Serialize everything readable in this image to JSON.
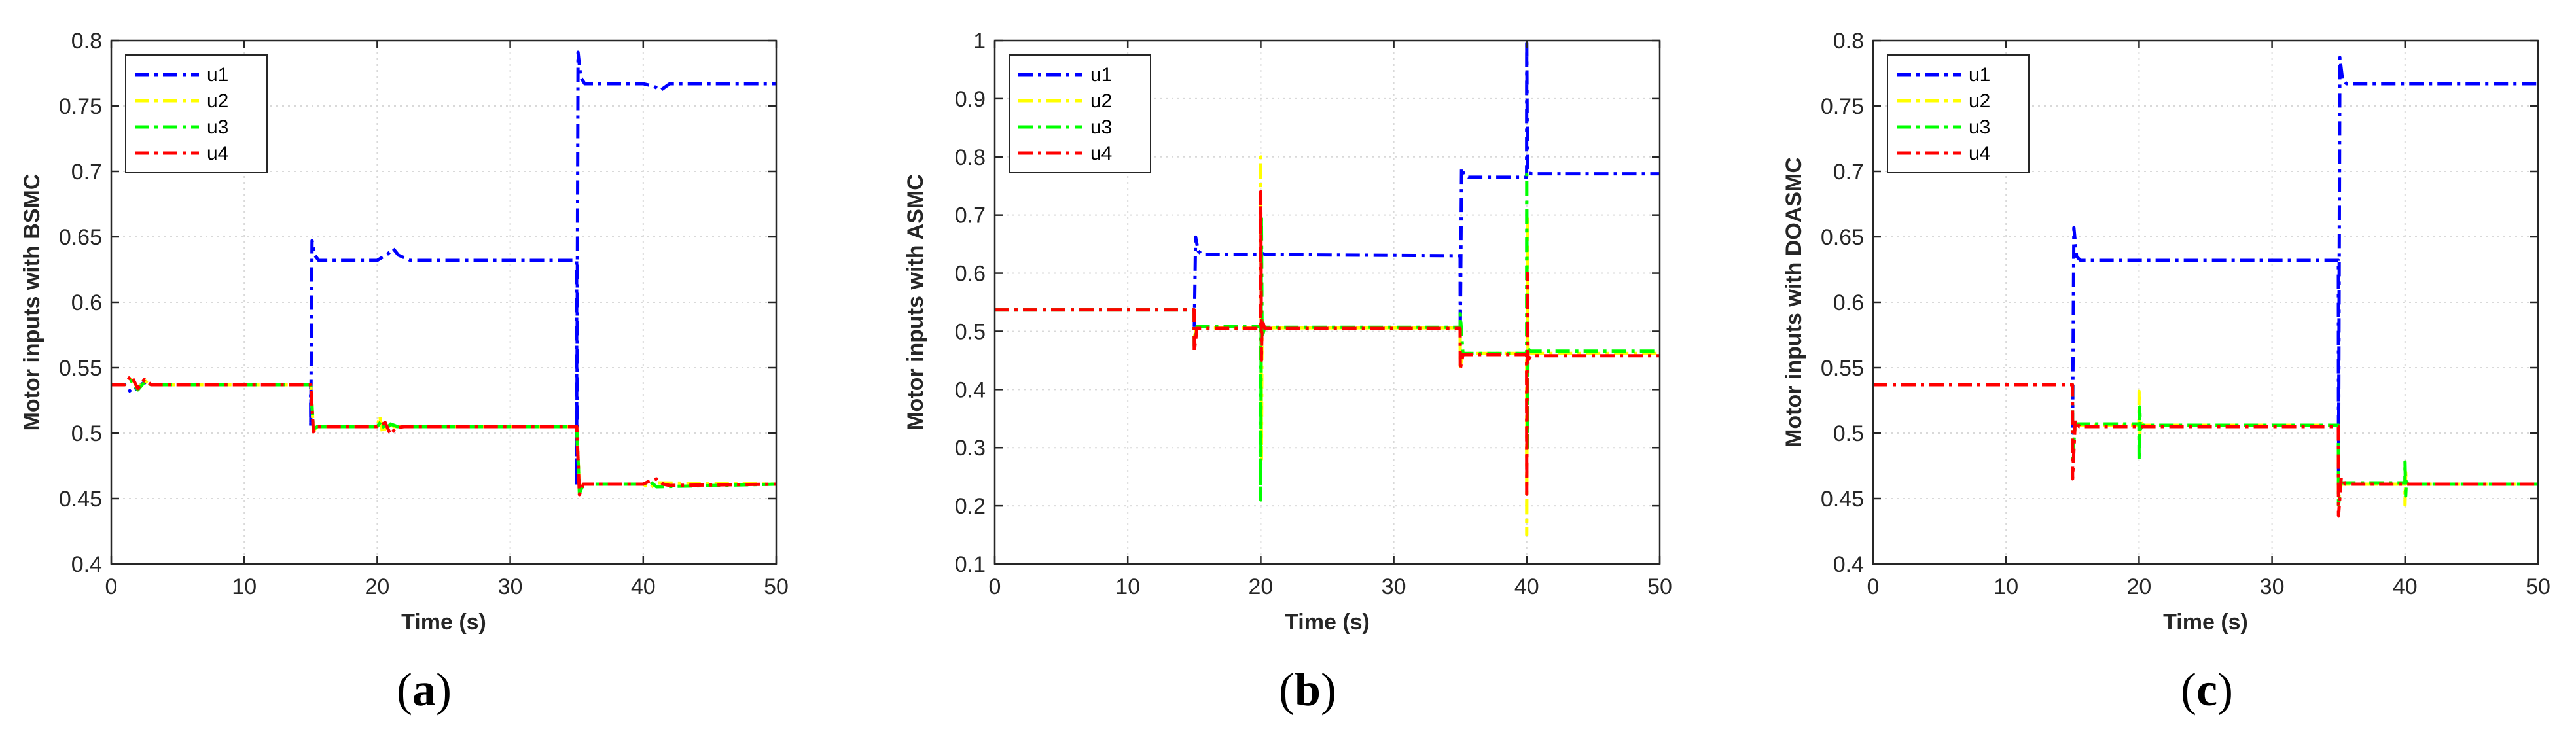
{
  "chart_data": [
    {
      "type": "line",
      "panel_label": "a",
      "xlabel": "Time (s)",
      "ylabel": "Motor inputs with BSMC",
      "xlim": [
        0,
        50
      ],
      "ylim": [
        0.4,
        0.8
      ],
      "xticks": [
        0,
        10,
        20,
        30,
        40,
        50
      ],
      "yticks": [
        0.4,
        0.45,
        0.5,
        0.55,
        0.6,
        0.65,
        0.7,
        0.75,
        0.8
      ],
      "ytick_labels": [
        "0.4",
        "0.45",
        "0.5",
        "0.55",
        "0.6",
        "0.65",
        "0.7",
        "0.75",
        "0.8"
      ],
      "grid": true,
      "legend": "top-left",
      "series": [
        {
          "name": "u1",
          "color": "#0000ff",
          "x": [
            0,
            1.0,
            1.5,
            2.0,
            2.5,
            3.0,
            3.5,
            14.99,
            15.0,
            15.1,
            15.3,
            15.6,
            20.0,
            20.8,
            21.2,
            21.6,
            22.5,
            34.99,
            35.0,
            35.1,
            35.3,
            35.6,
            40.0,
            40.8,
            41.3,
            42.0,
            50.0
          ],
          "y": [
            0.537,
            0.537,
            0.531,
            0.535,
            0.539,
            0.537,
            0.537,
            0.537,
            0.505,
            0.647,
            0.636,
            0.632,
            0.632,
            0.637,
            0.641,
            0.636,
            0.632,
            0.632,
            0.46,
            0.791,
            0.772,
            0.767,
            0.767,
            0.765,
            0.762,
            0.767,
            0.767
          ]
        },
        {
          "name": "u2",
          "color": "#ffff00",
          "x": [
            0,
            1.0,
            1.5,
            2.0,
            2.5,
            3.0,
            14.99,
            15.0,
            15.2,
            15.5,
            20.0,
            20.2,
            20.4,
            20.8,
            21.3,
            34.99,
            35.0,
            35.2,
            35.5,
            40.0,
            40.5,
            41.0,
            50.0
          ],
          "y": [
            0.537,
            0.537,
            0.543,
            0.534,
            0.54,
            0.537,
            0.537,
            0.537,
            0.502,
            0.505,
            0.505,
            0.513,
            0.5,
            0.507,
            0.505,
            0.505,
            0.505,
            0.456,
            0.461,
            0.461,
            0.458,
            0.462,
            0.461
          ]
        },
        {
          "name": "u3",
          "color": "#00ff00",
          "x": [
            0,
            1.0,
            1.5,
            2.0,
            2.5,
            3.0,
            14.99,
            15.0,
            15.2,
            15.5,
            20.0,
            20.3,
            20.6,
            21.0,
            21.5,
            34.99,
            35.0,
            35.2,
            35.5,
            40.0,
            40.5,
            41.0,
            50.0
          ],
          "y": [
            0.537,
            0.537,
            0.54,
            0.533,
            0.539,
            0.537,
            0.537,
            0.537,
            0.503,
            0.505,
            0.505,
            0.509,
            0.502,
            0.507,
            0.505,
            0.505,
            0.505,
            0.454,
            0.461,
            0.461,
            0.463,
            0.459,
            0.461
          ]
        },
        {
          "name": "u4",
          "color": "#ff0000",
          "x": [
            0,
            1.0,
            1.5,
            2.0,
            2.5,
            3.0,
            14.99,
            15.0,
            15.2,
            15.5,
            20.0,
            20.6,
            21.0,
            21.4,
            22.0,
            34.99,
            35.0,
            35.2,
            35.5,
            40.0,
            40.6,
            41.0,
            41.5,
            42.0,
            50.0
          ],
          "y": [
            0.537,
            0.537,
            0.544,
            0.534,
            0.541,
            0.537,
            0.537,
            0.537,
            0.501,
            0.505,
            0.505,
            0.508,
            0.499,
            0.504,
            0.505,
            0.505,
            0.505,
            0.453,
            0.461,
            0.461,
            0.464,
            0.465,
            0.461,
            0.46,
            0.461
          ]
        }
      ]
    },
    {
      "type": "line",
      "panel_label": "b",
      "xlabel": "Time (s)",
      "ylabel": "Motor inputs with ASMC",
      "xlim": [
        0,
        50
      ],
      "ylim": [
        0.1,
        1.0
      ],
      "xticks": [
        0,
        10,
        20,
        30,
        40,
        50
      ],
      "yticks": [
        0.1,
        0.2,
        0.3,
        0.4,
        0.5,
        0.6,
        0.7,
        0.8,
        0.9,
        1.0
      ],
      "ytick_labels": [
        "0.1",
        "0.2",
        "0.3",
        "0.4",
        "0.5",
        "0.6",
        "0.7",
        "0.8",
        "0.9",
        "1"
      ],
      "grid": true,
      "legend": "top-left",
      "series": [
        {
          "name": "u1",
          "color": "#0000ff",
          "x": [
            0,
            14.99,
            15.0,
            15.1,
            15.3,
            15.6,
            19.99,
            20.0,
            20.1,
            20.4,
            34.99,
            35.0,
            35.1,
            35.3,
            35.6,
            39.99,
            40.0,
            40.05,
            40.1,
            40.4,
            50.0
          ],
          "y": [
            0.537,
            0.537,
            0.5,
            0.662,
            0.638,
            0.632,
            0.632,
            0.632,
            0.634,
            0.632,
            0.63,
            0.5,
            0.781,
            0.768,
            0.765,
            0.765,
            1.0,
            0.78,
            0.772,
            0.771,
            0.771
          ]
        },
        {
          "name": "u2",
          "color": "#ffff00",
          "x": [
            0,
            14.99,
            15.0,
            15.2,
            19.99,
            20.0,
            20.05,
            20.1,
            20.3,
            34.99,
            35.0,
            35.2,
            39.99,
            40.0,
            40.05,
            40.1,
            40.3,
            50.0
          ],
          "y": [
            0.537,
            0.537,
            0.49,
            0.506,
            0.506,
            0.8,
            0.28,
            0.52,
            0.506,
            0.506,
            0.44,
            0.462,
            0.462,
            0.15,
            0.7,
            0.45,
            0.462,
            0.462
          ]
        },
        {
          "name": "u3",
          "color": "#00ff00",
          "x": [
            0,
            14.99,
            15.0,
            15.2,
            19.99,
            20.0,
            20.05,
            20.1,
            20.3,
            34.99,
            35.0,
            35.2,
            39.99,
            40.0,
            40.05,
            40.1,
            40.3,
            50.0
          ],
          "y": [
            0.537,
            0.537,
            0.475,
            0.508,
            0.508,
            0.21,
            0.7,
            0.49,
            0.507,
            0.507,
            0.53,
            0.462,
            0.462,
            0.77,
            0.3,
            0.47,
            0.466,
            0.466
          ]
        },
        {
          "name": "u4",
          "color": "#ff0000",
          "x": [
            0,
            14.99,
            15.0,
            15.2,
            19.99,
            20.0,
            20.05,
            20.1,
            20.3,
            34.99,
            35.0,
            35.2,
            39.99,
            40.0,
            40.05,
            40.1,
            40.3,
            50.0
          ],
          "y": [
            0.537,
            0.537,
            0.466,
            0.505,
            0.505,
            0.74,
            0.45,
            0.52,
            0.505,
            0.505,
            0.435,
            0.46,
            0.46,
            0.22,
            0.6,
            0.45,
            0.458,
            0.458
          ]
        }
      ]
    },
    {
      "type": "line",
      "panel_label": "c",
      "xlabel": "Time (s)",
      "ylabel": "Motor inputs with DOASMC",
      "xlim": [
        0,
        50
      ],
      "ylim": [
        0.4,
        0.8
      ],
      "xticks": [
        0,
        10,
        20,
        30,
        40,
        50
      ],
      "yticks": [
        0.4,
        0.45,
        0.5,
        0.55,
        0.6,
        0.65,
        0.7,
        0.75,
        0.8
      ],
      "ytick_labels": [
        "0.4",
        "0.45",
        "0.5",
        "0.55",
        "0.6",
        "0.65",
        "0.7",
        "0.75",
        "0.8"
      ],
      "grid": true,
      "legend": "top-left",
      "series": [
        {
          "name": "u1",
          "color": "#0000ff",
          "x": [
            0,
            14.99,
            15.0,
            15.1,
            15.3,
            15.6,
            34.99,
            35.0,
            35.1,
            35.3,
            35.6,
            50.0
          ],
          "y": [
            0.537,
            0.537,
            0.5,
            0.657,
            0.635,
            0.632,
            0.632,
            0.47,
            0.787,
            0.77,
            0.767,
            0.767
          ]
        },
        {
          "name": "u2",
          "color": "#ffff00",
          "x": [
            0,
            14.99,
            15.0,
            15.2,
            19.99,
            20.0,
            20.05,
            20.1,
            20.3,
            34.99,
            35.0,
            35.2,
            39.99,
            40.0,
            40.05,
            40.1,
            40.3,
            50.0
          ],
          "y": [
            0.537,
            0.537,
            0.49,
            0.506,
            0.506,
            0.532,
            0.495,
            0.51,
            0.506,
            0.506,
            0.45,
            0.461,
            0.461,
            0.445,
            0.47,
            0.459,
            0.461,
            0.461
          ]
        },
        {
          "name": "u3",
          "color": "#00ff00",
          "x": [
            0,
            14.99,
            15.0,
            15.2,
            19.99,
            20.0,
            20.05,
            20.1,
            20.3,
            34.99,
            35.0,
            35.2,
            39.99,
            40.0,
            40.05,
            40.1,
            40.3,
            50.0
          ],
          "y": [
            0.537,
            0.537,
            0.48,
            0.507,
            0.507,
            0.479,
            0.52,
            0.503,
            0.506,
            0.506,
            0.445,
            0.462,
            0.462,
            0.478,
            0.452,
            0.463,
            0.461,
            0.461
          ]
        },
        {
          "name": "u4",
          "color": "#ff0000",
          "x": [
            0,
            14.99,
            15.0,
            15.2,
            15.5,
            34.99,
            35.0,
            35.2,
            35.5,
            50.0
          ],
          "y": [
            0.537,
            0.537,
            0.465,
            0.51,
            0.505,
            0.505,
            0.437,
            0.466,
            0.461,
            0.461
          ]
        }
      ]
    }
  ]
}
